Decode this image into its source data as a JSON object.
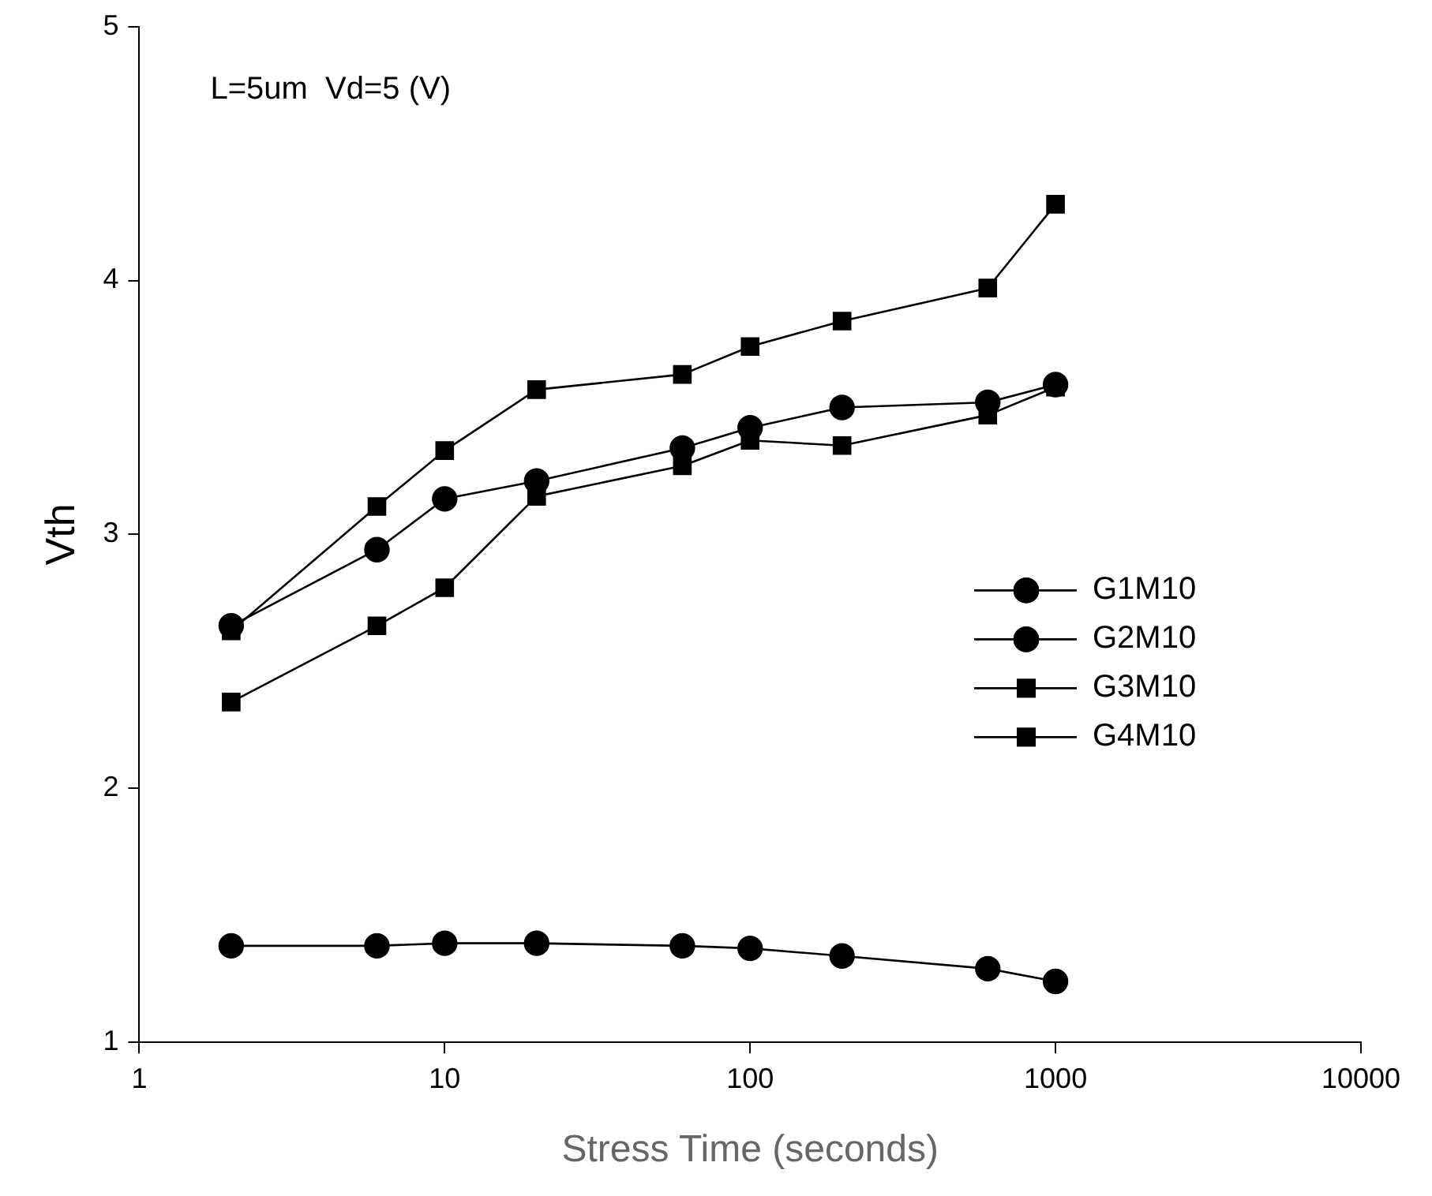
{
  "chart_data": {
    "type": "line",
    "xlabel": "Stress Time (seconds)",
    "ylabel": "Vth",
    "annotations": [
      "L=5um  Vd=5 (V)"
    ],
    "x": [
      2,
      6,
      10,
      20,
      60,
      100,
      200,
      600,
      1000
    ],
    "log": "x",
    "xlim": [
      1,
      10000
    ],
    "xticks": [
      1,
      10,
      100,
      1000,
      10000
    ],
    "ylim": [
      1,
      5
    ],
    "yticks": [
      1,
      2,
      3,
      4,
      5
    ],
    "grid": false,
    "legend": "right",
    "series": [
      {
        "name": "G1M10",
        "color": "#000000",
        "marker": "circle",
        "values": [
          1.38,
          1.38,
          1.39,
          1.39,
          1.38,
          1.37,
          1.34,
          1.29,
          1.24
        ]
      },
      {
        "name": "G2M10",
        "color": "#000000",
        "marker": "circle",
        "values": [
          2.64,
          2.94,
          3.14,
          3.21,
          3.34,
          3.42,
          3.5,
          3.52,
          3.59
        ]
      },
      {
        "name": "G3M10",
        "color": "#000000",
        "marker": "square",
        "values": [
          2.34,
          2.64,
          2.79,
          3.15,
          3.27,
          3.37,
          3.35,
          3.47,
          3.58
        ]
      },
      {
        "name": "G4M10",
        "color": "#000000",
        "marker": "square",
        "values": [
          2.62,
          3.11,
          3.33,
          3.57,
          3.63,
          3.74,
          3.84,
          3.97,
          4.3
        ]
      }
    ]
  }
}
